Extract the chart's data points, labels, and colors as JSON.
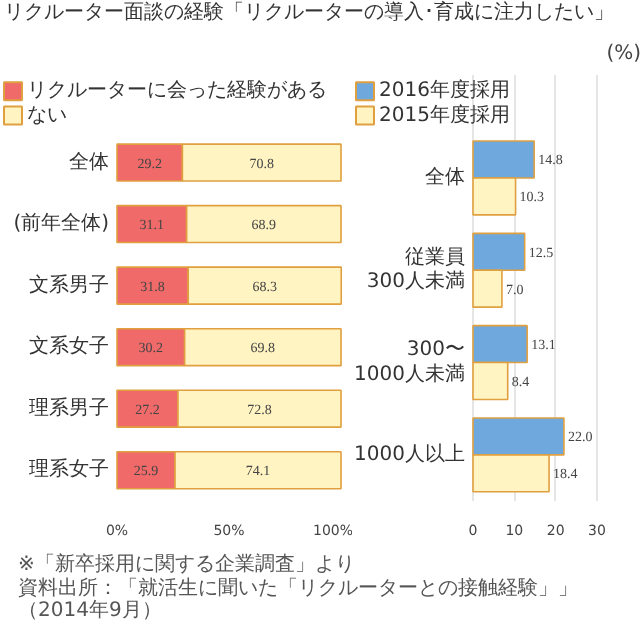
{
  "chart_data": [
    {
      "type": "bar",
      "orientation": "horizontal",
      "stacked": true,
      "title": "リクルーター面談の経験",
      "categories": [
        "全体",
        "(前年全体)",
        "文系男子",
        "文系女子",
        "理系男子",
        "理系女子"
      ],
      "series": [
        {
          "name": "リクルーターに会った経験がある",
          "color": "#f06a6a",
          "values": [
            29.2,
            31.1,
            31.8,
            30.2,
            27.2,
            25.9
          ]
        },
        {
          "name": "ない",
          "color": "#fff4c2",
          "values": [
            70.8,
            68.9,
            68.3,
            69.8,
            72.8,
            74.1
          ]
        }
      ],
      "xlim": [
        0,
        100
      ],
      "xticks": [
        {
          "value": 0,
          "label": "0%"
        },
        {
          "value": 50,
          "label": "50%"
        },
        {
          "value": 100,
          "label": "100%"
        }
      ],
      "data_labels": true,
      "legend": "top",
      "grid": false
    },
    {
      "type": "bar",
      "orientation": "horizontal",
      "title": "「リクルーターの導入･育成に注力したい」",
      "xlabel": "(%)",
      "categories": [
        "全体",
        "従業員\n300人未満",
        "300〜\n1000人未満",
        "1000人以上"
      ],
      "series": [
        {
          "name": "2016年度採用",
          "color": "#6fa8dc",
          "values": [
            14.8,
            12.5,
            13.1,
            22.0
          ],
          "value_labels": [
            "14.8",
            "12.5",
            "13.1",
            "22.0"
          ]
        },
        {
          "name": "2015年度採用",
          "color": "#fff4c2",
          "values": [
            10.3,
            7.0,
            8.4,
            18.4
          ],
          "value_labels": [
            "10.3",
            "7.0",
            "8.4",
            "18.4"
          ]
        }
      ],
      "xlim": [
        0,
        30
      ],
      "xticks": [
        0,
        10,
        20,
        30
      ],
      "legend": "top",
      "grid": "x",
      "annotations": [
        "※「新卒採用に関する企業調査」より",
        "資料出所：「就活生に聞いた「リクルーターとの接触経験」」（2014年9月）"
      ]
    }
  ]
}
